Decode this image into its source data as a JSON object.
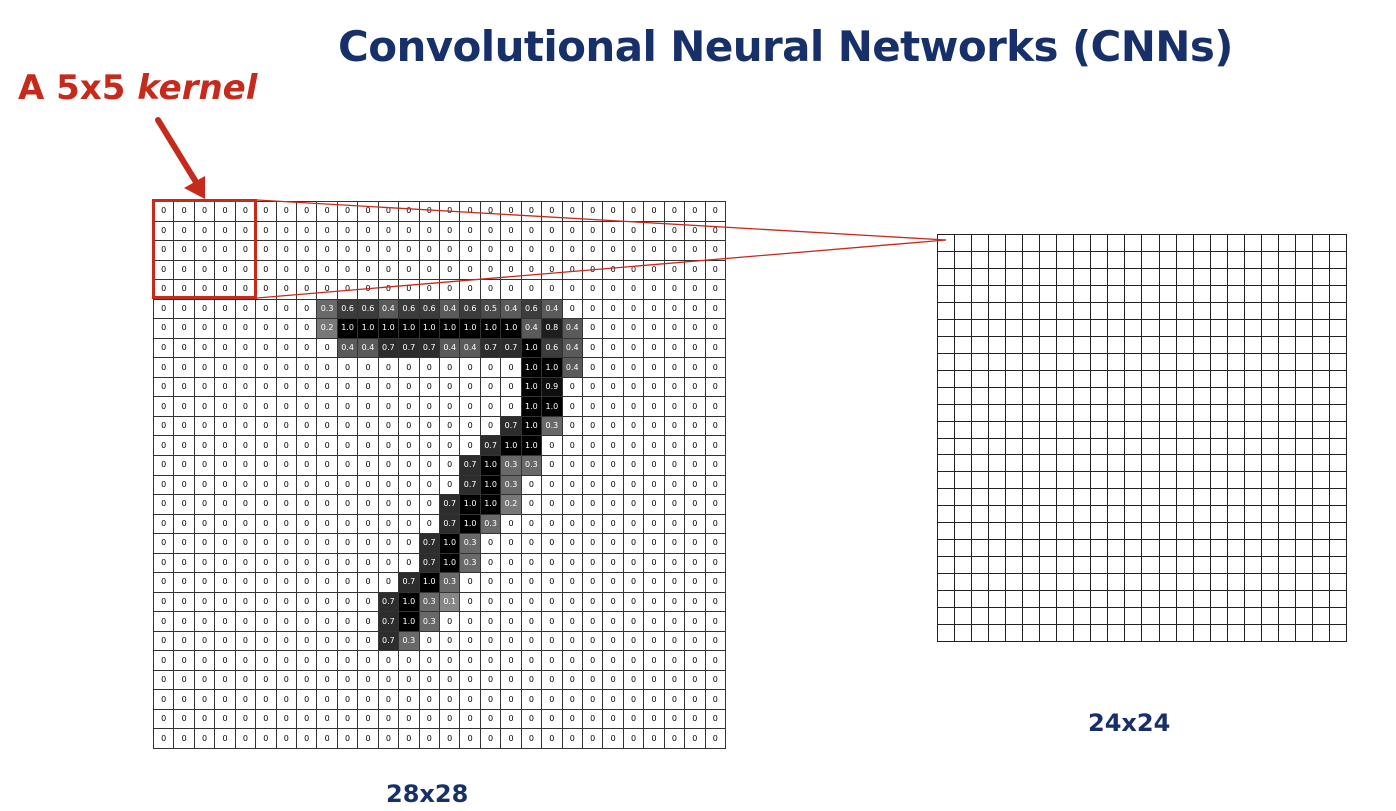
{
  "title": "Convolutional Neural Networks (CNNs)",
  "kernel_label": {
    "prefix": "A 5x5 ",
    "emphasis": "kernel"
  },
  "input_grid": {
    "label": "28x28",
    "rows": 28,
    "cols": 28,
    "default_value": "0",
    "nonzero": [
      {
        "r": 5,
        "c": 8,
        "v": "0.3"
      },
      {
        "r": 5,
        "c": 9,
        "v": "0.6"
      },
      {
        "r": 5,
        "c": 10,
        "v": "0.6"
      },
      {
        "r": 5,
        "c": 11,
        "v": "0.4"
      },
      {
        "r": 5,
        "c": 12,
        "v": "0.6"
      },
      {
        "r": 5,
        "c": 13,
        "v": "0.6"
      },
      {
        "r": 5,
        "c": 14,
        "v": "0.4"
      },
      {
        "r": 5,
        "c": 15,
        "v": "0.6"
      },
      {
        "r": 5,
        "c": 16,
        "v": "0.5"
      },
      {
        "r": 5,
        "c": 17,
        "v": "0.4"
      },
      {
        "r": 5,
        "c": 18,
        "v": "0.6"
      },
      {
        "r": 5,
        "c": 19,
        "v": "0.4"
      },
      {
        "r": 6,
        "c": 8,
        "v": "0.2"
      },
      {
        "r": 6,
        "c": 9,
        "v": "1.0"
      },
      {
        "r": 6,
        "c": 10,
        "v": "1.0"
      },
      {
        "r": 6,
        "c": 11,
        "v": "1.0"
      },
      {
        "r": 6,
        "c": 12,
        "v": "1.0"
      },
      {
        "r": 6,
        "c": 13,
        "v": "1.0"
      },
      {
        "r": 6,
        "c": 14,
        "v": "1.0"
      },
      {
        "r": 6,
        "c": 15,
        "v": "1.0"
      },
      {
        "r": 6,
        "c": 16,
        "v": "1.0"
      },
      {
        "r": 6,
        "c": 17,
        "v": "1.0"
      },
      {
        "r": 6,
        "c": 18,
        "v": "0.4"
      },
      {
        "r": 6,
        "c": 19,
        "v": "0.8"
      },
      {
        "r": 6,
        "c": 20,
        "v": "0.4"
      },
      {
        "r": 7,
        "c": 9,
        "v": "0.4"
      },
      {
        "r": 7,
        "c": 10,
        "v": "0.4"
      },
      {
        "r": 7,
        "c": 11,
        "v": "0.7"
      },
      {
        "r": 7,
        "c": 12,
        "v": "0.7"
      },
      {
        "r": 7,
        "c": 13,
        "v": "0.7"
      },
      {
        "r": 7,
        "c": 14,
        "v": "0.4"
      },
      {
        "r": 7,
        "c": 15,
        "v": "0.4"
      },
      {
        "r": 7,
        "c": 16,
        "v": "0.7"
      },
      {
        "r": 7,
        "c": 17,
        "v": "0.7"
      },
      {
        "r": 7,
        "c": 18,
        "v": "1.0"
      },
      {
        "r": 7,
        "c": 19,
        "v": "0.6"
      },
      {
        "r": 7,
        "c": 20,
        "v": "0.4"
      },
      {
        "r": 8,
        "c": 18,
        "v": "1.0"
      },
      {
        "r": 8,
        "c": 19,
        "v": "1.0"
      },
      {
        "r": 8,
        "c": 20,
        "v": "0.4"
      },
      {
        "r": 9,
        "c": 18,
        "v": "1.0"
      },
      {
        "r": 9,
        "c": 19,
        "v": "0.9"
      },
      {
        "r": 10,
        "c": 18,
        "v": "1.0"
      },
      {
        "r": 10,
        "c": 19,
        "v": "1.0"
      },
      {
        "r": 11,
        "c": 17,
        "v": "0.7"
      },
      {
        "r": 11,
        "c": 18,
        "v": "1.0"
      },
      {
        "r": 11,
        "c": 19,
        "v": "0.3"
      },
      {
        "r": 12,
        "c": 16,
        "v": "0.7"
      },
      {
        "r": 12,
        "c": 17,
        "v": "1.0"
      },
      {
        "r": 12,
        "c": 18,
        "v": "1.0"
      },
      {
        "r": 13,
        "c": 15,
        "v": "0.7"
      },
      {
        "r": 13,
        "c": 16,
        "v": "1.0"
      },
      {
        "r": 13,
        "c": 17,
        "v": "0.3"
      },
      {
        "r": 13,
        "c": 18,
        "v": "0.3"
      },
      {
        "r": 14,
        "c": 15,
        "v": "0.7"
      },
      {
        "r": 14,
        "c": 16,
        "v": "1.0"
      },
      {
        "r": 14,
        "c": 17,
        "v": "0.3"
      },
      {
        "r": 15,
        "c": 14,
        "v": "0.7"
      },
      {
        "r": 15,
        "c": 15,
        "v": "1.0"
      },
      {
        "r": 15,
        "c": 16,
        "v": "1.0"
      },
      {
        "r": 15,
        "c": 17,
        "v": "0.2"
      },
      {
        "r": 16,
        "c": 14,
        "v": "0.7"
      },
      {
        "r": 16,
        "c": 15,
        "v": "1.0"
      },
      {
        "r": 16,
        "c": 16,
        "v": "0.3"
      },
      {
        "r": 17,
        "c": 13,
        "v": "0.7"
      },
      {
        "r": 17,
        "c": 14,
        "v": "1.0"
      },
      {
        "r": 17,
        "c": 15,
        "v": "0.3"
      },
      {
        "r": 18,
        "c": 13,
        "v": "0.7"
      },
      {
        "r": 18,
        "c": 14,
        "v": "1.0"
      },
      {
        "r": 18,
        "c": 15,
        "v": "0.3"
      },
      {
        "r": 19,
        "c": 12,
        "v": "0.7"
      },
      {
        "r": 19,
        "c": 13,
        "v": "1.0"
      },
      {
        "r": 19,
        "c": 14,
        "v": "0.3"
      },
      {
        "r": 20,
        "c": 11,
        "v": "0.7"
      },
      {
        "r": 20,
        "c": 12,
        "v": "1.0"
      },
      {
        "r": 20,
        "c": 13,
        "v": "0.3"
      },
      {
        "r": 20,
        "c": 14,
        "v": "0.1"
      },
      {
        "r": 21,
        "c": 11,
        "v": "0.7"
      },
      {
        "r": 21,
        "c": 12,
        "v": "1.0"
      },
      {
        "r": 21,
        "c": 13,
        "v": "0.3"
      },
      {
        "r": 22,
        "c": 11,
        "v": "0.7"
      },
      {
        "r": 22,
        "c": 12,
        "v": "0.3"
      }
    ]
  },
  "output_grid": {
    "label": "24x24",
    "rows": 24,
    "cols": 24
  },
  "kernel": {
    "rows": 5,
    "cols": 5
  },
  "colors": {
    "title": "#17306a",
    "accent": "#c62a1c",
    "label": "#17306a"
  }
}
